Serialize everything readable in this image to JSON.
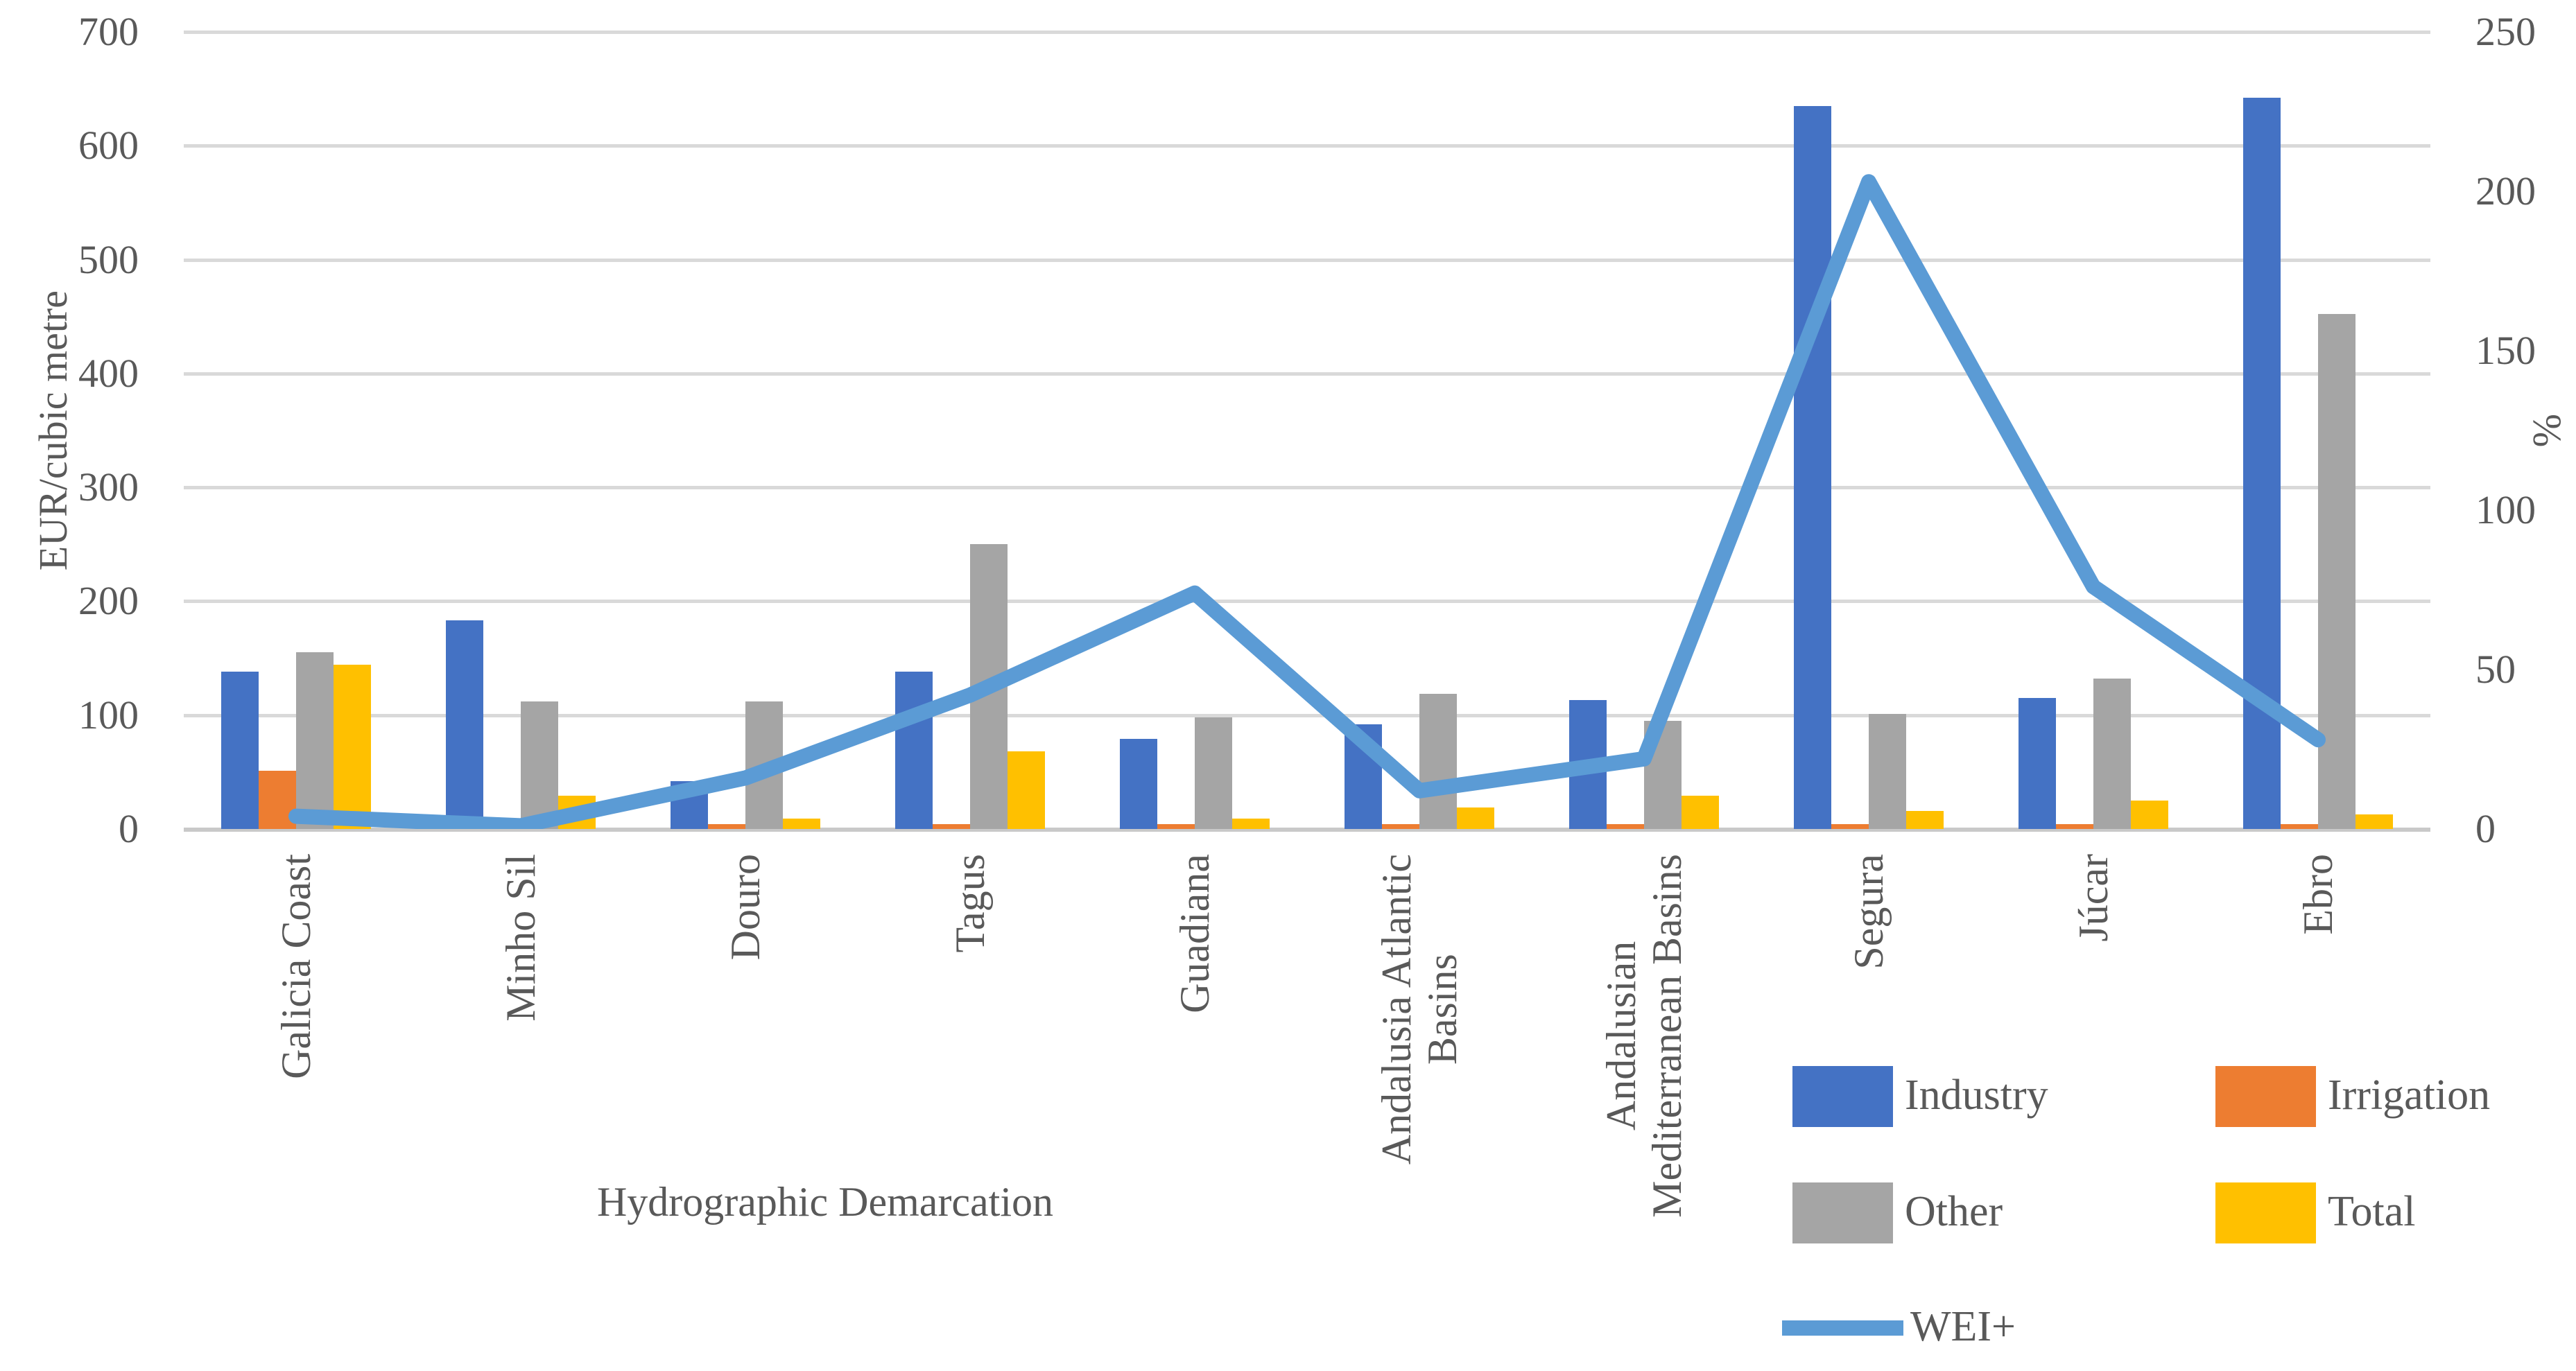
{
  "chart_data": {
    "type": "combo-bar-line",
    "title": "",
    "categories": [
      "Galicia Coast",
      "Minho Sil",
      "Douro",
      "Tagus",
      "Guadiana",
      "Andalusia Atlantic\nBasins",
      "Andalusian\nMediterranean Basins",
      "Segura",
      "Júcar",
      "Ebro"
    ],
    "bar_series": [
      {
        "name": "Industry",
        "color": "#4472C4",
        "values": [
          138,
          183,
          42,
          138,
          79,
          92,
          113,
          635,
          115,
          642
        ]
      },
      {
        "name": "Irrigation",
        "color": "#ED7D31",
        "values": [
          51,
          5,
          4,
          4,
          4,
          4,
          4,
          4,
          4,
          4
        ]
      },
      {
        "name": "Other",
        "color": "#A5A5A5",
        "values": [
          155,
          112,
          112,
          250,
          98,
          119,
          95,
          101,
          132,
          452
        ]
      },
      {
        "name": "Total",
        "color": "#FFC000",
        "values": [
          144,
          29,
          9,
          68,
          9,
          19,
          29,
          16,
          25,
          13
        ]
      }
    ],
    "line_series": {
      "name": "WEI+",
      "color": "#5B9BD5",
      "values": [
        4,
        1,
        16,
        42,
        74,
        12,
        22,
        203,
        76,
        28
      ]
    },
    "left_axis": {
      "label": "EUR/cubic metre",
      "min": 0,
      "max": 700,
      "step": 100,
      "ticks": [
        "0",
        "100",
        "200",
        "300",
        "400",
        "500",
        "600",
        "700"
      ]
    },
    "right_axis": {
      "label": "%",
      "min": 0,
      "max": 250,
      "step": 50,
      "ticks": [
        "0",
        "50",
        "100",
        "150",
        "200",
        "250"
      ]
    },
    "x_axis": {
      "label": "Hydrographic Demarcation"
    },
    "legend": {
      "position": "bottom-right",
      "entries": [
        {
          "label": "Industry",
          "color": "#4472C4",
          "type": "bar"
        },
        {
          "label": "Irrigation",
          "color": "#ED7D31",
          "type": "bar"
        },
        {
          "label": "Other",
          "color": "#A5A5A5",
          "type": "bar"
        },
        {
          "label": "Total",
          "color": "#FFC000",
          "type": "bar"
        },
        {
          "label": "WEI+",
          "color": "#5B9BD5",
          "type": "line"
        }
      ]
    },
    "grid": true
  }
}
